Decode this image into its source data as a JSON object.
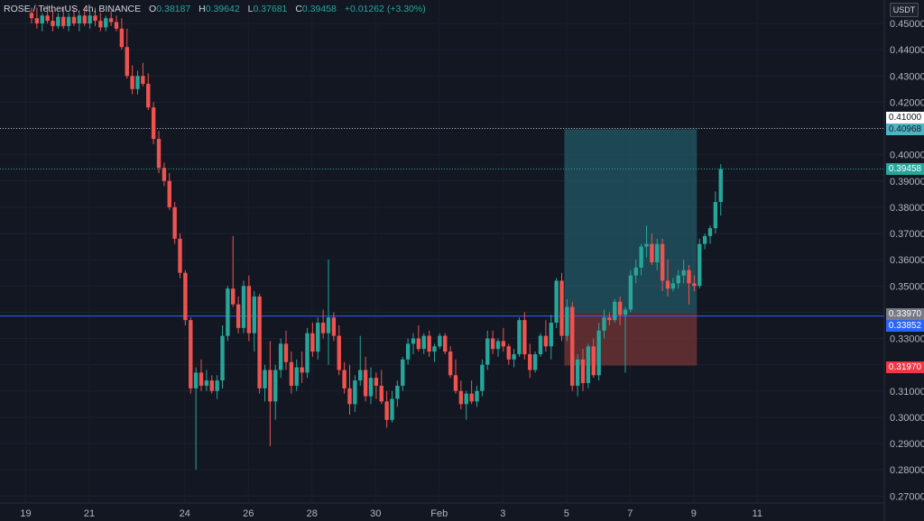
{
  "header": {
    "symbol": "ROSE / TetherUS, 4h, BINANCE",
    "o_label": "O",
    "o_value": "0.38187",
    "h_label": "H",
    "h_value": "0.39642",
    "l_label": "L",
    "l_value": "0.37681",
    "c_label": "C",
    "c_value": "0.39458",
    "change": "+0.01262 (+3.30%)"
  },
  "currency_button": "USDT",
  "colors": {
    "background": "#131722",
    "up": "#26a69a",
    "down": "#ef5350",
    "support_line": "#2962ff",
    "target_zone": "#26707c",
    "stop_zone": "#8c3a3a"
  },
  "price_tags": {
    "target_level": "0.41000",
    "target_value": "0.40968",
    "current": "0.39458",
    "entry": "0.33970",
    "support": "0.33852",
    "stop": "0.31970"
  },
  "chart_data": {
    "type": "candlestick",
    "interval": "4h",
    "ylim": [
      0.27,
      0.455
    ],
    "y_ticks": [
      "0.45000",
      "0.44000",
      "0.43000",
      "0.42000",
      "0.41000",
      "0.40000",
      "0.39000",
      "0.38000",
      "0.37000",
      "0.36000",
      "0.35000",
      "0.34000",
      "0.33000",
      "0.32000",
      "0.31000",
      "0.30000",
      "0.29000",
      "0.28000",
      "0.27000"
    ],
    "x_ticks": [
      "19",
      "21",
      "24",
      "26",
      "28",
      "30",
      "Feb",
      "3",
      "5",
      "7",
      "9",
      "11"
    ],
    "horizontal_lines": [
      {
        "name": "target level",
        "value": 0.41,
        "style": "dotted"
      },
      {
        "name": "current price",
        "value": 0.39458,
        "style": "dotted"
      },
      {
        "name": "support",
        "value": 0.33852,
        "style": "solid"
      }
    ],
    "position": {
      "entry": 0.3397,
      "target": 0.40968,
      "stop": 0.3197,
      "start_candle": 101,
      "end_candle": 125
    },
    "candles": [
      [
        0.454,
        0.456,
        0.45,
        0.452
      ],
      [
        0.452,
        0.456,
        0.448,
        0.45
      ],
      [
        0.45,
        0.454,
        0.447,
        0.453
      ],
      [
        0.453,
        0.457,
        0.45,
        0.451
      ],
      [
        0.451,
        0.455,
        0.447,
        0.449
      ],
      [
        0.449,
        0.454,
        0.448,
        0.4525
      ],
      [
        0.4525,
        0.456,
        0.448,
        0.449
      ],
      [
        0.449,
        0.454,
        0.447,
        0.4525
      ],
      [
        0.4525,
        0.456,
        0.449,
        0.45
      ],
      [
        0.45,
        0.454,
        0.447,
        0.453
      ],
      [
        0.453,
        0.456,
        0.449,
        0.45
      ],
      [
        0.45,
        0.455,
        0.448,
        0.453
      ],
      [
        0.453,
        0.456,
        0.449,
        0.451
      ],
      [
        0.451,
        0.454,
        0.447,
        0.4485
      ],
      [
        0.4485,
        0.453,
        0.447,
        0.452
      ],
      [
        0.452,
        0.455,
        0.449,
        0.4505
      ],
      [
        0.4505,
        0.453,
        0.447,
        0.448
      ],
      [
        0.448,
        0.452,
        0.44,
        0.441
      ],
      [
        0.441,
        0.448,
        0.429,
        0.43
      ],
      [
        0.43,
        0.434,
        0.423,
        0.425
      ],
      [
        0.425,
        0.432,
        0.423,
        0.43
      ],
      [
        0.43,
        0.435,
        0.426,
        0.427
      ],
      [
        0.427,
        0.431,
        0.417,
        0.418
      ],
      [
        0.418,
        0.42,
        0.404,
        0.406
      ],
      [
        0.406,
        0.409,
        0.393,
        0.395
      ],
      [
        0.395,
        0.397,
        0.388,
        0.39
      ],
      [
        0.39,
        0.393,
        0.379,
        0.38
      ],
      [
        0.38,
        0.382,
        0.366,
        0.368
      ],
      [
        0.368,
        0.37,
        0.353,
        0.355
      ],
      [
        0.355,
        0.356,
        0.335,
        0.337
      ],
      [
        0.337,
        0.338,
        0.309,
        0.311
      ],
      [
        0.311,
        0.319,
        0.28,
        0.317
      ],
      [
        0.317,
        0.322,
        0.31,
        0.312
      ],
      [
        0.312,
        0.318,
        0.31,
        0.314
      ],
      [
        0.314,
        0.316,
        0.309,
        0.31
      ],
      [
        0.31,
        0.316,
        0.307,
        0.314
      ],
      [
        0.314,
        0.335,
        0.311,
        0.331
      ],
      [
        0.331,
        0.35,
        0.329,
        0.349
      ],
      [
        0.349,
        0.369,
        0.342,
        0.343
      ],
      [
        0.343,
        0.346,
        0.332,
        0.334
      ],
      [
        0.334,
        0.352,
        0.332,
        0.35
      ],
      [
        0.35,
        0.354,
        0.329,
        0.332
      ],
      [
        0.332,
        0.348,
        0.325,
        0.346
      ],
      [
        0.346,
        0.347,
        0.309,
        0.311
      ],
      [
        0.311,
        0.32,
        0.306,
        0.318
      ],
      [
        0.318,
        0.329,
        0.289,
        0.306
      ],
      [
        0.306,
        0.32,
        0.299,
        0.318
      ],
      [
        0.318,
        0.33,
        0.315,
        0.328
      ],
      [
        0.328,
        0.333,
        0.318,
        0.321
      ],
      [
        0.321,
        0.325,
        0.309,
        0.312
      ],
      [
        0.312,
        0.322,
        0.31,
        0.319
      ],
      [
        0.319,
        0.325,
        0.313,
        0.317
      ],
      [
        0.317,
        0.334,
        0.315,
        0.332
      ],
      [
        0.332,
        0.336,
        0.323,
        0.325
      ],
      [
        0.325,
        0.338,
        0.322,
        0.336
      ],
      [
        0.336,
        0.341,
        0.33,
        0.332
      ],
      [
        0.332,
        0.36,
        0.32,
        0.338
      ],
      [
        0.338,
        0.34,
        0.329,
        0.331
      ],
      [
        0.331,
        0.335,
        0.316,
        0.318
      ],
      [
        0.318,
        0.321,
        0.309,
        0.311
      ],
      [
        0.311,
        0.32,
        0.301,
        0.305
      ],
      [
        0.305,
        0.316,
        0.302,
        0.314
      ],
      [
        0.314,
        0.331,
        0.312,
        0.318
      ],
      [
        0.318,
        0.323,
        0.306,
        0.308
      ],
      [
        0.308,
        0.319,
        0.305,
        0.315
      ],
      [
        0.315,
        0.317,
        0.307,
        0.312
      ],
      [
        0.312,
        0.318,
        0.305,
        0.306
      ],
      [
        0.306,
        0.31,
        0.296,
        0.299
      ],
      [
        0.299,
        0.31,
        0.298,
        0.307
      ],
      [
        0.307,
        0.314,
        0.304,
        0.312
      ],
      [
        0.312,
        0.323,
        0.31,
        0.322
      ],
      [
        0.322,
        0.33,
        0.32,
        0.328
      ],
      [
        0.328,
        0.332,
        0.324,
        0.33
      ],
      [
        0.33,
        0.335,
        0.325,
        0.326
      ],
      [
        0.326,
        0.332,
        0.324,
        0.331
      ],
      [
        0.331,
        0.333,
        0.323,
        0.325
      ],
      [
        0.325,
        0.328,
        0.321,
        0.327
      ],
      [
        0.327,
        0.332,
        0.326,
        0.331
      ],
      [
        0.331,
        0.332,
        0.324,
        0.325
      ],
      [
        0.325,
        0.327,
        0.315,
        0.316
      ],
      [
        0.316,
        0.322,
        0.309,
        0.31
      ],
      [
        0.31,
        0.314,
        0.303,
        0.305
      ],
      [
        0.305,
        0.31,
        0.299,
        0.309
      ],
      [
        0.309,
        0.314,
        0.305,
        0.306
      ],
      [
        0.306,
        0.312,
        0.304,
        0.31
      ],
      [
        0.31,
        0.322,
        0.308,
        0.32
      ],
      [
        0.32,
        0.333,
        0.318,
        0.33
      ],
      [
        0.33,
        0.333,
        0.324,
        0.326
      ],
      [
        0.326,
        0.33,
        0.323,
        0.329
      ],
      [
        0.329,
        0.334,
        0.325,
        0.327
      ],
      [
        0.327,
        0.328,
        0.32,
        0.322
      ],
      [
        0.322,
        0.326,
        0.319,
        0.324
      ],
      [
        0.324,
        0.338,
        0.323,
        0.337
      ],
      [
        0.337,
        0.34,
        0.322,
        0.324
      ],
      [
        0.324,
        0.328,
        0.315,
        0.318
      ],
      [
        0.318,
        0.325,
        0.317,
        0.324
      ],
      [
        0.324,
        0.332,
        0.323,
        0.331
      ],
      [
        0.331,
        0.337,
        0.325,
        0.327
      ],
      [
        0.327,
        0.339,
        0.322,
        0.336
      ],
      [
        0.336,
        0.353,
        0.334,
        0.352
      ],
      [
        0.352,
        0.355,
        0.329,
        0.331
      ],
      [
        0.331,
        0.345,
        0.329,
        0.342
      ],
      [
        0.342,
        0.344,
        0.31,
        0.312
      ],
      [
        0.312,
        0.324,
        0.308,
        0.322
      ],
      [
        0.322,
        0.326,
        0.31,
        0.313
      ],
      [
        0.313,
        0.328,
        0.311,
        0.327
      ],
      [
        0.327,
        0.33,
        0.315,
        0.316
      ],
      [
        0.316,
        0.336,
        0.314,
        0.333
      ],
      [
        0.333,
        0.341,
        0.33,
        0.338
      ],
      [
        0.338,
        0.34,
        0.335,
        0.337
      ],
      [
        0.337,
        0.345,
        0.336,
        0.344
      ],
      [
        0.344,
        0.346,
        0.335,
        0.339
      ],
      [
        0.339,
        0.342,
        0.317,
        0.341
      ],
      [
        0.341,
        0.356,
        0.34,
        0.354
      ],
      [
        0.354,
        0.36,
        0.351,
        0.357
      ],
      [
        0.357,
        0.366,
        0.354,
        0.365
      ],
      [
        0.365,
        0.373,
        0.361,
        0.366
      ],
      [
        0.366,
        0.37,
        0.358,
        0.359
      ],
      [
        0.359,
        0.368,
        0.356,
        0.366
      ],
      [
        0.366,
        0.368,
        0.348,
        0.352
      ],
      [
        0.352,
        0.36,
        0.346,
        0.349
      ],
      [
        0.349,
        0.353,
        0.348,
        0.351
      ],
      [
        0.351,
        0.356,
        0.349,
        0.354
      ],
      [
        0.354,
        0.36,
        0.351,
        0.356
      ],
      [
        0.356,
        0.358,
        0.343,
        0.351
      ],
      [
        0.351,
        0.354,
        0.348,
        0.35
      ],
      [
        0.35,
        0.368,
        0.349,
        0.366
      ],
      [
        0.366,
        0.37,
        0.364,
        0.369
      ],
      [
        0.369,
        0.373,
        0.366,
        0.372
      ],
      [
        0.372,
        0.386,
        0.37,
        0.382
      ],
      [
        0.382,
        0.3964,
        0.3768,
        0.3946
      ]
    ]
  }
}
